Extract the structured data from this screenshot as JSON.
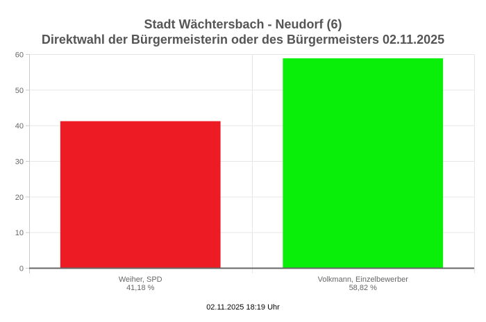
{
  "chart_data": {
    "type": "bar",
    "title": "Stadt Wächtersbach - Neudorf (6)",
    "subtitle": "Direktwahl der Bürgermeisterin oder des Bürgermeisters 02.11.2025",
    "categories": [
      "Weiher, SPD",
      "Volkmann, Einzelbewerber"
    ],
    "value_labels": [
      "41,18 %",
      "58,82 %"
    ],
    "values": [
      41.18,
      58.82
    ],
    "colors": [
      "#ed1c24",
      "#0aef0a"
    ],
    "ylim": [
      0,
      60
    ],
    "yticks": [
      "0",
      "10",
      "20",
      "30",
      "40",
      "50",
      "60"
    ],
    "grid": true,
    "footer": "02.11.2025 18:19 Uhr"
  }
}
